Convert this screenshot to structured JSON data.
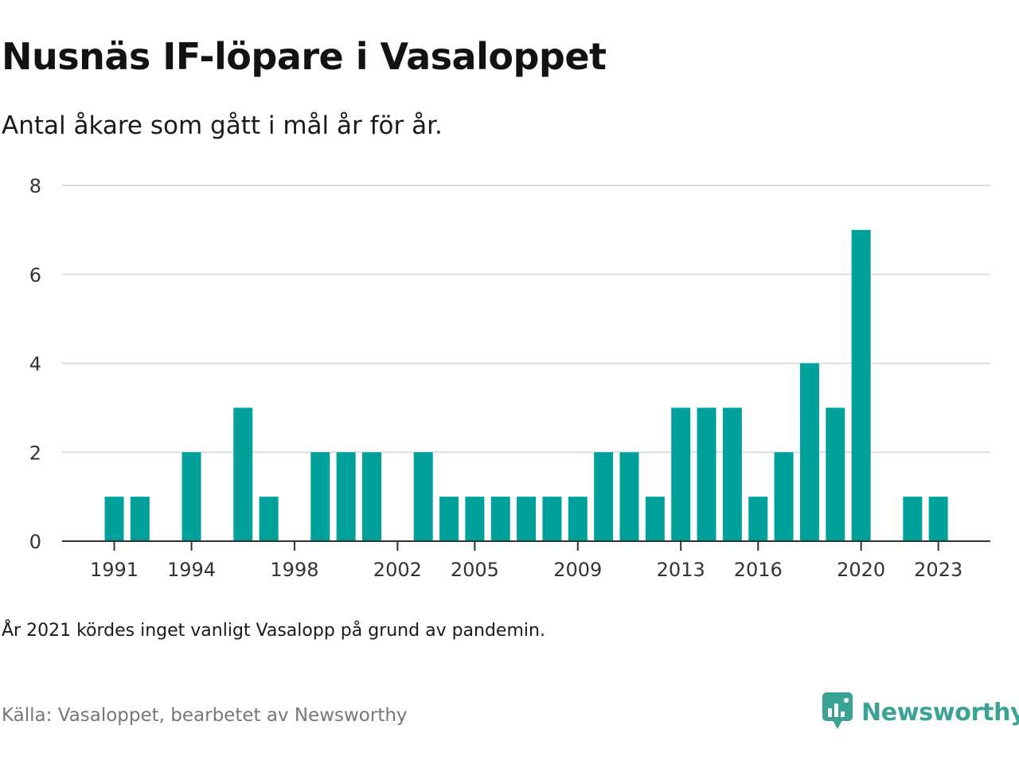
{
  "header": {
    "title": "Nusnäs IF-löpare i Vasaloppet",
    "subtitle": "Antal åkare som gått i mål år för år."
  },
  "footer": {
    "note": "År 2021 kördes inget vanligt Vasalopp på grund av pandemin.",
    "source": "Källa: Vasaloppet, bearbetet av Newsworthy",
    "brand": "Newsworthy"
  },
  "colors": {
    "bar": "#00a19a",
    "grid": "#dddddd",
    "axis": "#333333",
    "brand": "#3aa396"
  },
  "icons": {
    "brand": "newsworthy-logo-icon"
  },
  "chart_data": {
    "type": "bar",
    "x": [
      1991,
      1992,
      1993,
      1994,
      1995,
      1996,
      1997,
      1998,
      1999,
      2000,
      2001,
      2002,
      2003,
      2004,
      2005,
      2006,
      2007,
      2008,
      2009,
      2010,
      2011,
      2012,
      2013,
      2014,
      2015,
      2016,
      2017,
      2018,
      2019,
      2020,
      2021,
      2022,
      2023
    ],
    "values": [
      1,
      1,
      0,
      2,
      0,
      3,
      1,
      0,
      2,
      2,
      2,
      0,
      2,
      1,
      1,
      1,
      1,
      1,
      1,
      2,
      2,
      1,
      3,
      3,
      3,
      1,
      2,
      4,
      3,
      7,
      0,
      1,
      1
    ],
    "x_tick_labels": [
      "1991",
      "1994",
      "1998",
      "2002",
      "2005",
      "2009",
      "2013",
      "2016",
      "2020",
      "2023"
    ],
    "y_ticks": [
      0,
      2,
      4,
      6,
      8
    ],
    "ylim": [
      0,
      8
    ],
    "xlabel": "",
    "ylabel": "",
    "grid": true,
    "legend": "none"
  }
}
